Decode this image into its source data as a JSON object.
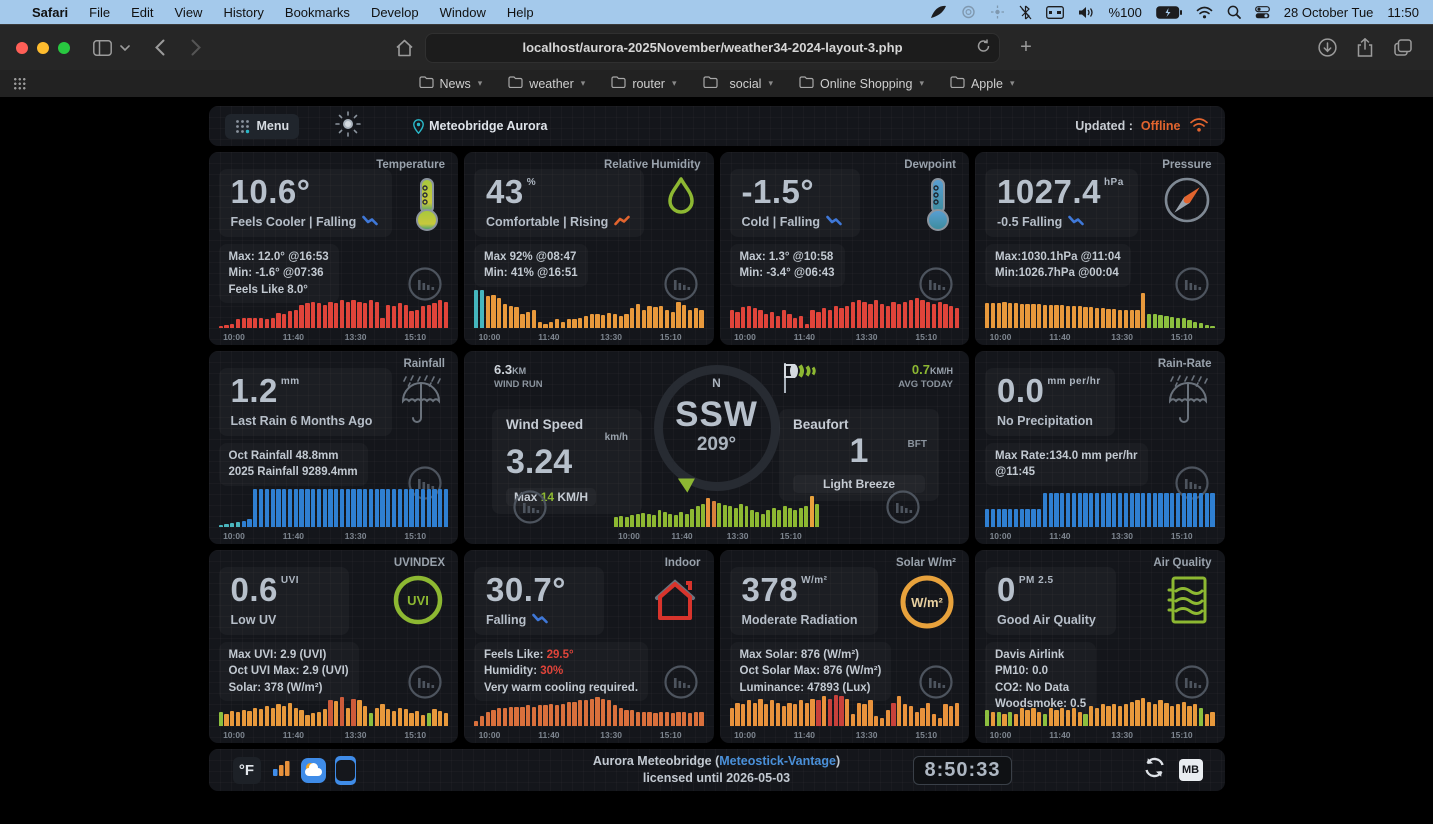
{
  "colors": {
    "offline": "#e2642e",
    "link": "#4a90d9",
    "teal": "#2ab7c8",
    "green": "#8db832",
    "red_bar": "#e0443a",
    "orange_bar": "#e8993c",
    "blue_bar": "#2f7fd1",
    "indoor_bar": "#d9703c",
    "accent_red": "#e0443a"
  },
  "macos_menubar": {
    "items": [
      "Safari",
      "File",
      "Edit",
      "View",
      "History",
      "Bookmarks",
      "Develop",
      "Window",
      "Help"
    ],
    "battery": "%100",
    "date": "28 October Tue",
    "time": "11:50"
  },
  "safari": {
    "url": "localhost/aurora-2025November/weather34-2024-layout-3.php",
    "bookmarks": [
      {
        "label": "News"
      },
      {
        "label": "weather"
      },
      {
        "label": "router"
      },
      {
        "label": "social",
        "apple_prefix": ""
      },
      {
        "label": "Online Shopping"
      },
      {
        "label": "Apple"
      }
    ]
  },
  "dashboard": {
    "header": {
      "menu_label": "Menu",
      "station": "Meteobridge Aurora",
      "updated_label": "Updated :",
      "status": "Offline"
    },
    "footer": {
      "unit_toggle": "°F",
      "title_pre": "Aurora Meteobridge (",
      "title_link": "Meteostick-Vantage",
      "title_post": ")",
      "license": "licensed until 2026-05-03",
      "clock": "8:50:33",
      "badge": "MB"
    }
  },
  "wind": {
    "windrun_value": "6.3",
    "windrun_unit": "KM",
    "windrun_label": "WIND RUN",
    "avg_value": "0.7",
    "avg_unit": "KM/H",
    "avg_label": "AVG TODAY",
    "speed_label": "Wind Speed",
    "speed_unit": "km/h",
    "speed_value": "3.24",
    "max_pre": "Max ",
    "max_value": "14",
    "max_unit": " KM/H",
    "compass_north": "N",
    "direction": "SSW",
    "degrees": "209°",
    "beaufort_label": "Beaufort",
    "beaufort_unit": "BFT",
    "beaufort_value": "1",
    "beaufort_desc": "Light Breeze",
    "xticks": [
      "10:00",
      "11:40",
      "13:30",
      "15:10"
    ],
    "chart": {
      "type": "bar",
      "color": "#8db832",
      "values": [
        25,
        28,
        25,
        30,
        33,
        36,
        33,
        30,
        42,
        38,
        33,
        30,
        38,
        33,
        46,
        52,
        58,
        72,
        66,
        60,
        56,
        52,
        48,
        58,
        52,
        43,
        38,
        33,
        43,
        48,
        43,
        52,
        48,
        43,
        48,
        52,
        78,
        58
      ],
      "overrides": {
        "17": "#e8923c",
        "18": "#d9823c",
        "36": "#e8a23c"
      }
    }
  },
  "tiles": [
    {
      "id": "temperature",
      "title": "Temperature",
      "value": "10.6°",
      "unit": "",
      "status": "Feels Cooler | Falling",
      "trend": "falling",
      "icon": "thermometer-warm",
      "details": [
        {
          "pre": "Max: 12.0° @16:53"
        },
        {
          "pre": "Min: -1.6° @07:36"
        },
        {
          "pre": "Feels Like 8.0°"
        }
      ],
      "xticks": [
        "10:00",
        "11:40",
        "13:30",
        "15:10"
      ],
      "chart": {
        "type": "bar",
        "color": "#e0443a",
        "values": [
          6,
          8,
          10,
          22,
          26,
          24,
          26,
          25,
          23,
          26,
          38,
          34,
          42,
          46,
          58,
          62,
          66,
          62,
          58,
          66,
          62,
          70,
          66,
          70,
          66,
          62,
          70,
          66,
          26,
          58,
          54,
          62,
          58,
          42,
          46,
          54,
          58,
          62,
          70,
          66
        ],
        "overrides": {}
      }
    },
    {
      "id": "humidity",
      "title": "Relative Humidity",
      "value": "43",
      "unit": "%",
      "status": "Comfortable | Rising",
      "trend": "rising",
      "icon": "droplet",
      "details": [
        {
          "pre": "Max 92% @08:47"
        },
        {
          "pre": "Min: 41% @16:51"
        }
      ],
      "xticks": [
        "10:00",
        "11:40",
        "13:30",
        "15:10"
      ],
      "chart": {
        "type": "bar",
        "color": "#e8993c",
        "values": [
          95,
          95,
          80,
          82,
          74,
          60,
          55,
          52,
          36,
          40,
          46,
          15,
          10,
          15,
          22,
          15,
          22,
          22,
          26,
          30,
          34,
          34,
          32,
          38,
          34,
          30,
          34,
          50,
          60,
          45,
          55,
          52,
          55,
          45,
          40,
          65,
          58,
          45,
          50,
          46
        ],
        "overrides": {
          "0": "#45b6be",
          "1": "#45b6be"
        }
      }
    },
    {
      "id": "dewpoint",
      "title": "Dewpoint",
      "value": "-1.5°",
      "unit": "",
      "status": "Cold | Falling",
      "trend": "falling",
      "icon": "thermometer-cold",
      "details": [
        {
          "pre": "Max: 1.3° @10:58"
        },
        {
          "pre": "Min: -3.4° @06:43"
        }
      ],
      "xticks": [
        "10:00",
        "11:40",
        "13:30",
        "15:10"
      ],
      "chart": {
        "type": "bar",
        "color": "#e0443a",
        "values": [
          45,
          40,
          52,
          56,
          50,
          44,
          34,
          40,
          30,
          46,
          34,
          24,
          30,
          10,
          46,
          40,
          50,
          46,
          56,
          50,
          56,
          64,
          70,
          64,
          60,
          70,
          60,
          56,
          66,
          60,
          66,
          70,
          74,
          70,
          64,
          60,
          66,
          60,
          56,
          50
        ],
        "overrides": {}
      }
    },
    {
      "id": "pressure",
      "title": "Pressure",
      "value": "1027.4",
      "unit": "hPa",
      "status": "-0.5 Falling",
      "trend": "falling",
      "icon": "gauge",
      "details": [
        {
          "pre": "Max:1030.1hPa @11:04"
        },
        {
          "pre": "Min:1026.7hPa @00:04"
        }
      ],
      "xticks": [
        "10:00",
        "11:40",
        "13:30",
        "15:10"
      ],
      "chart": {
        "type": "bar",
        "color": "#e8993c",
        "values": [
          62,
          63,
          63,
          64,
          63,
          62,
          61,
          60,
          60,
          59,
          58,
          58,
          57,
          57,
          56,
          55,
          54,
          53,
          52,
          51,
          50,
          48,
          47,
          46,
          45,
          44,
          44,
          88,
          36,
          34,
          32,
          30,
          28,
          26,
          24,
          20,
          16,
          12,
          8,
          6
        ],
        "overrides": {
          "28": "#8cbf3f",
          "29": "#8cbf3f",
          "30": "#8cbf3f",
          "31": "#8cbf3f",
          "32": "#8cbf3f",
          "33": "#8cbf3f",
          "34": "#8cbf3f",
          "35": "#8cbf3f",
          "36": "#8cbf3f",
          "37": "#8cbf3f",
          "38": "#8cbf3f",
          "39": "#8cbf3f"
        }
      }
    },
    {
      "id": "rainfall",
      "title": "Rainfall",
      "value": "1.2",
      "unit": "mm",
      "status": "Last Rain 6 Months Ago",
      "trend": null,
      "icon": "umbrella",
      "details": [
        {
          "pre": "Oct Rainfall 48.8mm"
        },
        {
          "pre": "2025 Rainfall 9289.4mm"
        }
      ],
      "xticks": [
        "10:00",
        "11:40",
        "13:30",
        "15:10"
      ],
      "chart": {
        "type": "bar",
        "color": "#2f7fd1",
        "values": [
          5,
          7,
          9,
          12,
          16,
          20,
          95,
          95,
          95,
          95,
          95,
          95,
          95,
          95,
          95,
          95,
          95,
          95,
          95,
          95,
          95,
          95,
          95,
          95,
          95,
          95,
          95,
          95,
          95,
          95,
          95,
          95,
          95,
          95,
          95,
          95,
          95,
          95,
          95,
          95
        ],
        "overrides": {
          "0": "#4ab5bd",
          "1": "#4ab5bd",
          "2": "#4ab5bd",
          "3": "#4ab5bd"
        }
      }
    },
    {
      "id": "wind"
    },
    {
      "id": "rainrate",
      "title": "Rain-Rate",
      "value": "0.0",
      "unit": "mm per/hr",
      "status": "No Precipitation",
      "trend": null,
      "icon": "umbrella",
      "details": [
        {
          "pre": "Max Rate:134.0 mm per/hr"
        },
        {
          "pre": "@11:45"
        }
      ],
      "xticks": [
        "10:00",
        "11:40",
        "13:30",
        "15:10"
      ],
      "chart": {
        "type": "bar",
        "color": "#2f7fd1",
        "values": [
          46,
          46,
          46,
          46,
          46,
          46,
          46,
          46,
          46,
          46,
          86,
          86,
          86,
          86,
          86,
          86,
          86,
          86,
          86,
          86,
          86,
          86,
          86,
          86,
          86,
          86,
          86,
          86,
          86,
          86,
          86,
          86,
          86,
          86,
          86,
          86,
          86,
          86,
          86,
          86
        ],
        "overrides": {}
      }
    },
    {
      "id": "uvindex",
      "title": "UVINDEX",
      "value": "0.6",
      "unit": "UVI",
      "status": "Low UV",
      "trend": null,
      "icon": "uvi-ring",
      "details": [
        {
          "pre": "Max UVI: 2.9 (UVI)"
        },
        {
          "pre": "Oct UVI Max: 2.9 (UVI)"
        },
        {
          "pre": "Solar: 378 (W/m²)"
        }
      ],
      "xticks": [
        "10:00",
        "11:40",
        "13:30",
        "15:10"
      ],
      "chart": {
        "type": "bar",
        "color": "#e8993c",
        "values": [
          35,
          30,
          38,
          36,
          40,
          38,
          44,
          42,
          50,
          46,
          54,
          50,
          58,
          46,
          40,
          28,
          32,
          36,
          42,
          66,
          62,
          72,
          46,
          68,
          64,
          50,
          32,
          46,
          54,
          42,
          38,
          46,
          42,
          32,
          38,
          28,
          32,
          42,
          38,
          32
        ],
        "overrides": {
          "0": "#8cbf3f",
          "26": "#8cbf3f",
          "36": "#8cbf3f",
          "19": "#cd5b3a",
          "21": "#cd5b3a",
          "23": "#cd5b3a"
        }
      }
    },
    {
      "id": "indoor",
      "title": "Indoor",
      "value": "30.7°",
      "unit": "",
      "status": "Falling",
      "trend": "falling",
      "icon": "house",
      "details": [
        {
          "pre": "Feels Like: ",
          "accent": "29.5°"
        },
        {
          "pre": "Humidity: ",
          "accent": "30%"
        },
        {
          "pre": "Very warm cooling required."
        }
      ],
      "xticks": [
        "10:00",
        "11:40",
        "13:30",
        "15:10"
      ],
      "chart": {
        "type": "bar",
        "color": "#d9703c",
        "values": [
          12,
          26,
          36,
          40,
          44,
          44,
          48,
          48,
          48,
          52,
          48,
          52,
          52,
          56,
          52,
          56,
          60,
          60,
          64,
          64,
          68,
          72,
          68,
          64,
          52,
          44,
          40,
          40,
          36,
          36,
          36,
          32,
          36,
          36,
          32,
          36,
          36,
          32,
          36,
          36
        ],
        "overrides": {}
      }
    },
    {
      "id": "solar",
      "title": "Solar W/m²",
      "value": "378",
      "unit": "W/m²",
      "status": "Moderate Radiation",
      "trend": null,
      "icon": "solar-ring",
      "details": [
        {
          "pre": "Max Solar: 876 (W/m²)"
        },
        {
          "pre": "Oct Solar Max: 876 (W/m²)"
        },
        {
          "pre": "Luminance: 47893 (Lux)"
        }
      ],
      "xticks": [
        "10:00",
        "11:40",
        "13:30",
        "15:10"
      ],
      "chart": {
        "type": "bar",
        "color": "#e8923c",
        "values": [
          45,
          58,
          54,
          64,
          58,
          68,
          54,
          64,
          58,
          50,
          58,
          54,
          64,
          58,
          68,
          64,
          74,
          68,
          78,
          74,
          68,
          30,
          58,
          54,
          64,
          24,
          20,
          40,
          58,
          74,
          54,
          50,
          34,
          44,
          58,
          30,
          20,
          54,
          50,
          58
        ],
        "overrides": {
          "15": "#c8413b",
          "17": "#c8413b",
          "18": "#c8413b",
          "19": "#c8413b",
          "28": "#c8413b"
        }
      }
    },
    {
      "id": "airquality",
      "title": "Air Quality",
      "value": "0",
      "unit": "PM 2.5",
      "status": "Good Air Quality",
      "trend": null,
      "icon": "air-filter",
      "details": [
        {
          "pre": "Davis Airlink"
        },
        {
          "pre": "PM10: 0.0"
        },
        {
          "pre": "CO2: No Data"
        },
        {
          "pre": "Woodsmoke: 0.5"
        }
      ],
      "xticks": [
        "10:00",
        "11:40",
        "13:30",
        "15:10"
      ],
      "chart": {
        "type": "bar",
        "color": "#e8993c",
        "values": [
          40,
          35,
          36,
          30,
          36,
          30,
          44,
          40,
          44,
          36,
          30,
          44,
          40,
          44,
          40,
          44,
          36,
          30,
          50,
          44,
          54,
          50,
          54,
          50,
          56,
          60,
          64,
          70,
          60,
          56,
          64,
          58,
          50,
          54,
          60,
          50,
          54,
          44,
          30,
          36
        ],
        "overrides": {
          "0": "#8cbf3f",
          "2": "#8cbf3f",
          "4": "#8cbf3f",
          "10": "#8cbf3f",
          "17": "#8cbf3f",
          "37": "#8cbf3f"
        }
      }
    }
  ]
}
